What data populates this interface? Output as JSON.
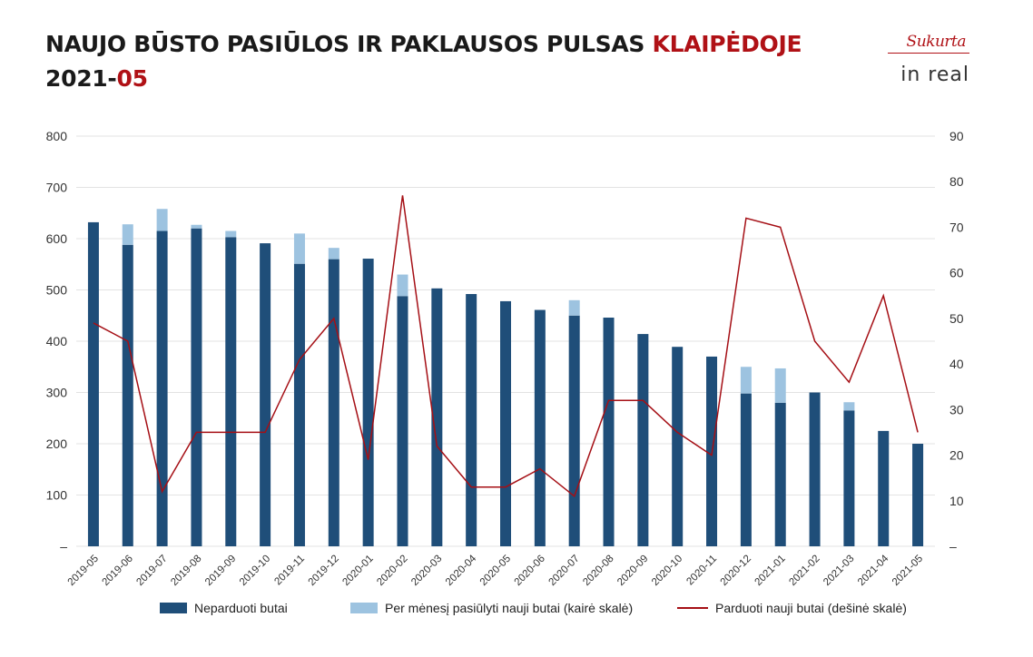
{
  "header": {
    "title_main": "NAUJO BŪSTO PASIŪLOS IR PAKLAUSOS PULSAS ",
    "title_city": "KLAIPĖDOJE",
    "period_year": "2021-",
    "period_month": "05"
  },
  "logo": {
    "top": "Sukurta",
    "bottom": "in real"
  },
  "colors": {
    "unsold": "#1f4e79",
    "offered": "#9dc3e0",
    "sold": "#a50f15",
    "accent": "#b01116"
  },
  "chart_data": {
    "type": "bar",
    "categories": [
      "2019-05",
      "2019-06",
      "2019-07",
      "2019-08",
      "2019-09",
      "2019-10",
      "2019-11",
      "2019-12",
      "2020-01",
      "2020-02",
      "2020-03",
      "2020-04",
      "2020-05",
      "2020-06",
      "2020-07",
      "2020-08",
      "2020-09",
      "2020-10",
      "2020-11",
      "2020-12",
      "2021-01",
      "2021-02",
      "2021-03",
      "2021-04",
      "2021-05"
    ],
    "left_axis": {
      "ylim": [
        0,
        800
      ],
      "ticks": [
        "–",
        "100",
        "200",
        "300",
        "400",
        "500",
        "600",
        "700",
        "800"
      ]
    },
    "right_axis": {
      "ylim": [
        0,
        90
      ],
      "ticks": [
        "–",
        "10",
        "20",
        "30",
        "40",
        "50",
        "60",
        "70",
        "80",
        "90"
      ]
    },
    "series": [
      {
        "name": "Neparduoti butai",
        "type": "bar",
        "axis": "left",
        "values": [
          632,
          588,
          615,
          620,
          603,
          591,
          551,
          560,
          561,
          488,
          503,
          492,
          478,
          461,
          450,
          446,
          414,
          389,
          370,
          298,
          280,
          300,
          265,
          225,
          200
        ]
      },
      {
        "name": "Per mėnesį pasiūlyti nauji butai (kairė skalė)",
        "type": "bar-stacked",
        "axis": "left",
        "values": [
          0,
          40,
          43,
          7,
          12,
          0,
          59,
          22,
          0,
          42,
          0,
          0,
          0,
          0,
          30,
          0,
          0,
          0,
          0,
          52,
          67,
          0,
          16,
          0,
          0
        ]
      },
      {
        "name": "Parduoti nauji butai (dešinė skalė)",
        "type": "line",
        "axis": "right",
        "values": [
          49,
          45,
          12,
          25,
          25,
          25,
          41,
          50,
          19,
          77,
          22,
          13,
          13,
          17,
          11,
          32,
          32,
          25,
          20,
          72,
          70,
          45,
          36,
          55,
          25
        ]
      }
    ],
    "legend_position": "bottom",
    "grid": true
  }
}
